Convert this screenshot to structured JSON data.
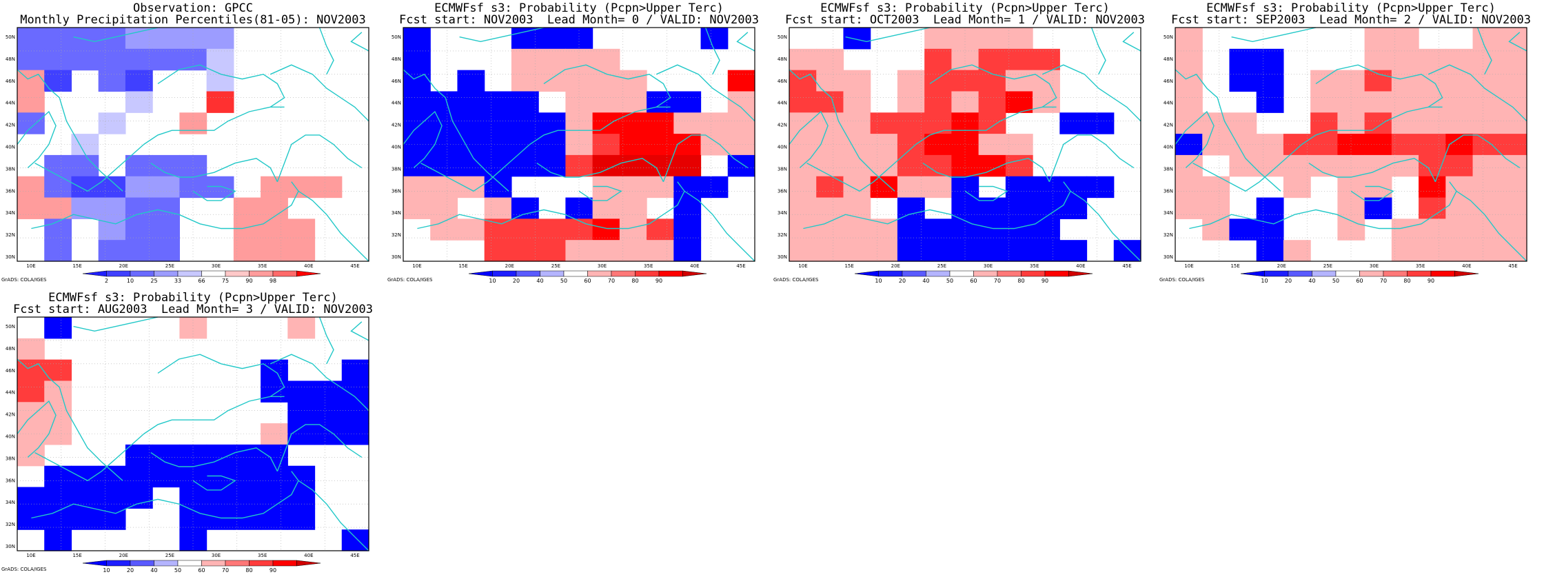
{
  "credit": "GrADS: COLA/IGES",
  "lon_ticks": [
    "10E",
    "15E",
    "20E",
    "25E",
    "30E",
    "35E",
    "40E",
    "45E"
  ],
  "lat_ticks": [
    "50N",
    "48N",
    "46N",
    "44N",
    "42N",
    "40N",
    "38N",
    "36N",
    "34N",
    "32N",
    "30N"
  ],
  "obs_levels": [
    "2",
    "10",
    "25",
    "33",
    "66",
    "75",
    "90",
    "98"
  ],
  "prob_levels": [
    "10",
    "20",
    "40",
    "50",
    "60",
    "70",
    "80",
    "90"
  ],
  "colors": {
    "coast": "#22c8c8",
    "obs_blues": [
      "#4040ff",
      "#6a6aff",
      "#9c9cff",
      "#c8c8ff"
    ],
    "obs_reds": [
      "#ffc8c8",
      "#ff9c9c",
      "#ff6a6a",
      "#ff3030"
    ],
    "prob_blues": [
      "#0000ff",
      "#3c3cff",
      "#7878ff"
    ],
    "prob_reds": [
      "#ffb4b4",
      "#ff7878",
      "#ff3c3c",
      "#ff0000",
      "#e60000"
    ]
  },
  "panels": [
    {
      "title1": "Observation: GPCC",
      "title2": "Monthly Precipitation Percentiles(81-05): NOV2003",
      "colorbar": "obs",
      "grid": [
        "22223333",
        "22222224",
        "61021004",
        "60004008",
        "2004006",
        "0040000",
        "0220222000000",
        "6211332206660",
        "6633220066000",
        "0203220066600",
        "0202220066600"
      ]
    },
    {
      "title1": "ECMWFsf s3: Probability (Pcpn>Upper Terc)",
      "title2": "Fcst start: NOV2003  Lead Month= 0 / VALID: NOV2003",
      "colorbar": "prob",
      "grid": [
        "1000111000010",
        "1000666600000",
        "1010666660008",
        "1111106661106",
        "1111116888666",
        "1111116788866",
        "1111117999901",
        "6661000666110",
        "6606101660100",
        "0667777867100",
        "0007776666100"
      ]
    },
    {
      "title1": "ECMWFsf s3: Probability (Pcpn>Upper Terc)",
      "title2": "Fcst start: OCT2003  Lead Month= 1 / VALID: NOV2003",
      "colorbar": "prob",
      "grid": [
        "0010066660000",
        "6600076777000",
        "7660677766000",
        "7760676786000",
        "6667778700110",
        "6666788660000",
        "6666778870000",
        "6768661011110",
        "6660101111100",
        "6666111111000",
        "6666111111101"
      ]
    },
    {
      "title1": "ECMWFsf s3: Probability (Pcpn>Upper Terc)",
      "title2": "Fcst start: SEP2003  Lead Month= 2 / VALID: NOV2003",
      "colorbar": "prob",
      "grid": [
        "6000000660066",
        "6011000666666",
        "6011066766666",
        "6001066666666",
        "6660076766666",
        "1666778877877",
        "6066666667766",
        "6600606608666",
        "6601006107666",
        "0611006066666",
        "0001600066666"
      ]
    },
    {
      "title1": "ECMWFsf s3: Probability (Pcpn>Upper Terc)",
      "title2": "Fcst start: AUG2003  Lead Month= 3 / VALID: NOV2003",
      "colorbar": "prob",
      "grid": [
        "0100006000600",
        "6000000000000",
        "7700000001001",
        "7600000001111",
        "6600000000111",
        "6600000006111",
        "6000111111000",
        "0111111111100",
        "1111101111100",
        "1111001111100",
        "0100001000001"
      ]
    }
  ]
}
